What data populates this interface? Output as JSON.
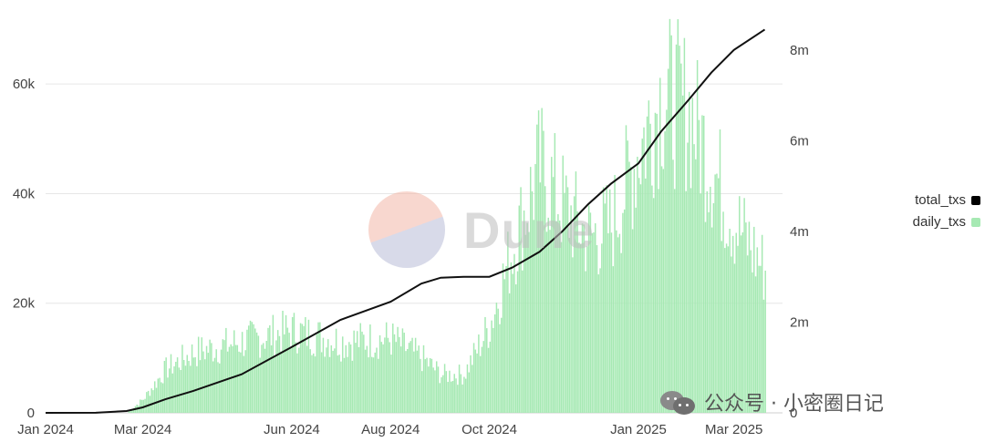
{
  "chart_data": {
    "type": "bar+line",
    "x_tick_labels": [
      "Jan 2024",
      "Mar 2024",
      "Jun 2024",
      "Aug 2024",
      "Oct 2024",
      "Jan 2025",
      "Mar 2025"
    ],
    "left_axis": {
      "ticks": [
        "0",
        "20k",
        "40k",
        "60k"
      ],
      "ylim": [
        0,
        72000
      ]
    },
    "right_axis": {
      "ticks": [
        "0",
        "2m",
        "4m",
        "6m",
        "8m"
      ],
      "ylim": [
        0,
        8700000
      ]
    },
    "grid": true,
    "legend_position": "right",
    "series": [
      {
        "name": "total_txs",
        "type": "line",
        "axis": "right",
        "color": "#000000",
        "points": [
          [
            "2024-01-01",
            0
          ],
          [
            "2024-02-01",
            2000
          ],
          [
            "2024-02-20",
            40000
          ],
          [
            "2024-03-01",
            120000
          ],
          [
            "2024-03-15",
            300000
          ],
          [
            "2024-04-01",
            480000
          ],
          [
            "2024-05-01",
            850000
          ],
          [
            "2024-06-01",
            1450000
          ],
          [
            "2024-07-01",
            2050000
          ],
          [
            "2024-08-01",
            2450000
          ],
          [
            "2024-08-20",
            2850000
          ],
          [
            "2024-09-01",
            2980000
          ],
          [
            "2024-09-15",
            3000000
          ],
          [
            "2024-10-01",
            3000000
          ],
          [
            "2024-10-15",
            3200000
          ],
          [
            "2024-11-01",
            3550000
          ],
          [
            "2024-11-15",
            4000000
          ],
          [
            "2024-12-01",
            4600000
          ],
          [
            "2024-12-15",
            5050000
          ],
          [
            "2025-01-01",
            5500000
          ],
          [
            "2025-01-15",
            6200000
          ],
          [
            "2025-02-01",
            6900000
          ],
          [
            "2025-02-15",
            7500000
          ],
          [
            "2025-03-01",
            8000000
          ],
          [
            "2025-03-20",
            8450000
          ]
        ]
      },
      {
        "name": "daily_txs",
        "type": "bar",
        "axis": "left",
        "color": "#a6e9b3",
        "points": [
          [
            "2024-01-01",
            0
          ],
          [
            "2024-02-01",
            0
          ],
          [
            "2024-02-20",
            0
          ],
          [
            "2024-03-01",
            2500
          ],
          [
            "2024-03-15",
            8000
          ],
          [
            "2024-04-01",
            11000
          ],
          [
            "2024-05-01",
            13000
          ],
          [
            "2024-06-01",
            15000
          ],
          [
            "2024-07-01",
            13000
          ],
          [
            "2024-08-01",
            13500
          ],
          [
            "2024-08-20",
            10000
          ],
          [
            "2024-09-01",
            7000
          ],
          [
            "2024-09-15",
            7000
          ],
          [
            "2024-10-01",
            16000
          ],
          [
            "2024-10-15",
            30000
          ],
          [
            "2024-11-01",
            45000
          ],
          [
            "2024-11-15",
            38000
          ],
          [
            "2024-12-01",
            32000
          ],
          [
            "2024-12-15",
            34000
          ],
          [
            "2025-01-01",
            48000
          ],
          [
            "2025-01-15",
            58000
          ],
          [
            "2025-02-01",
            55000
          ],
          [
            "2025-02-15",
            45000
          ],
          [
            "2025-03-01",
            35000
          ],
          [
            "2025-03-20",
            26000
          ]
        ]
      }
    ]
  },
  "legend": [
    {
      "label": "total_txs",
      "color": "#000000"
    },
    {
      "label": "daily_txs",
      "color": "#a6e9b3"
    }
  ],
  "watermark": {
    "text": "Dune"
  },
  "source_mark": {
    "text": "公众号 · 小密圈日记",
    "icon": "wechat-icon"
  }
}
